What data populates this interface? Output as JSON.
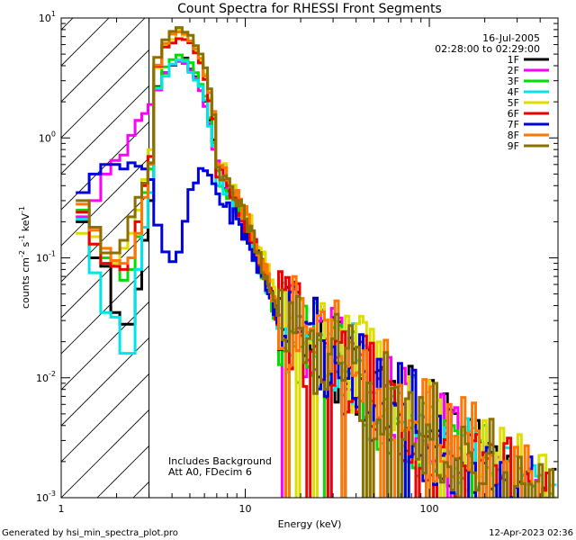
{
  "chart_data": {
    "type": "line",
    "title": "Count Spectra for RHESSI Front Segments",
    "xlabel": "Energy (keV)",
    "ylabel_prefix": "counts cm",
    "ylabel_sup1": "-2",
    "ylabel_mid1": " s",
    "ylabel_sup2": "-1",
    "ylabel_mid2": " keV",
    "ylabel_sup3": "-1",
    "xscale": "log",
    "yscale": "log",
    "xlim": [
      1,
      500
    ],
    "ylim": [
      0.001,
      10
    ],
    "x_ticks": [
      {
        "value": 1,
        "label": "1"
      },
      {
        "value": 10,
        "label": "10"
      },
      {
        "value": 100,
        "label": "100"
      }
    ],
    "y_ticks": [
      {
        "value": 10,
        "base": "10",
        "exp": "1"
      },
      {
        "value": 1,
        "base": "10",
        "exp": "0"
      },
      {
        "value": 0.1,
        "base": "10",
        "exp": "-1"
      },
      {
        "value": 0.01,
        "base": "10",
        "exp": "-2"
      },
      {
        "value": 0.001,
        "base": "10",
        "exp": "-3"
      }
    ],
    "date": "16-Jul-2005",
    "time_range": "02:28:00 to 02:29:00",
    "hatched_region_kev": [
      1,
      3
    ],
    "annotation_1": "Includes Background",
    "annotation_2": "Att A0, FDecim 6",
    "legend_position": "top-right",
    "series": [
      {
        "name": "1F",
        "color": "#000000",
        "low": [
          0.2,
          0.1,
          0.085,
          0.035,
          0.028,
          0.028,
          0.055,
          0.14,
          0.3
        ],
        "peak": 4.6,
        "knee": 0.5,
        "mid": 0.035,
        "seed": 11
      },
      {
        "name": "2F",
        "color": "#ff00ff",
        "low": [
          0.22,
          0.3,
          0.5,
          0.65,
          0.72,
          1.05,
          1.4,
          1.6,
          1.9
        ],
        "peak": 4.3,
        "knee": 0.55,
        "mid": 0.03,
        "seed": 23
      },
      {
        "name": "3F",
        "color": "#00dd00",
        "low": [
          0.25,
          0.13,
          0.1,
          0.085,
          0.065,
          0.08,
          0.15,
          0.35,
          0.55
        ],
        "peak": 4.7,
        "knee": 0.45,
        "mid": 0.028,
        "seed": 37
      },
      {
        "name": "4F",
        "color": "#00e5e5",
        "low": [
          0.21,
          0.075,
          0.035,
          0.032,
          0.016,
          0.016,
          0.08,
          0.18,
          0.35
        ],
        "peak": 4.4,
        "knee": 0.45,
        "mid": 0.03,
        "seed": 41
      },
      {
        "name": "5F",
        "color": "#dddd00",
        "low": [
          0.16,
          0.15,
          0.09,
          0.09,
          0.12,
          0.16,
          0.25,
          0.45,
          0.8
        ],
        "peak": 7.5,
        "knee": 0.7,
        "mid": 0.038,
        "seed": 53
      },
      {
        "name": "6F",
        "color": "#ee0000",
        "low": [
          0.24,
          0.13,
          0.09,
          0.085,
          0.08,
          0.1,
          0.2,
          0.4,
          0.7
        ],
        "peak": 7.0,
        "knee": 0.55,
        "mid": 0.032,
        "seed": 67
      },
      {
        "name": "7F",
        "color": "#0000dd",
        "low": [
          0.35,
          0.5,
          0.6,
          0.6,
          0.55,
          0.62,
          0.58,
          0.55,
          0.45
        ],
        "peak": 0.55,
        "knee": 0.35,
        "mid": 0.03,
        "seed": 71
      },
      {
        "name": "8F",
        "color": "#ff7700",
        "low": [
          0.28,
          0.17,
          0.12,
          0.095,
          0.09,
          0.1,
          0.16,
          0.32,
          0.6
        ],
        "peak": 7.8,
        "knee": 0.65,
        "mid": 0.036,
        "seed": 83
      },
      {
        "name": "9F",
        "color": "#8b7000",
        "low": [
          0.3,
          0.18,
          0.11,
          0.11,
          0.14,
          0.22,
          0.32,
          0.42,
          0.62
        ],
        "peak": 8.2,
        "knee": 0.6,
        "mid": 0.034,
        "seed": 97
      }
    ]
  },
  "footer": {
    "generated_by": "Generated by hsi_min_spectra_plot.pro",
    "timestamp": "12-Apr-2023 02:36"
  }
}
